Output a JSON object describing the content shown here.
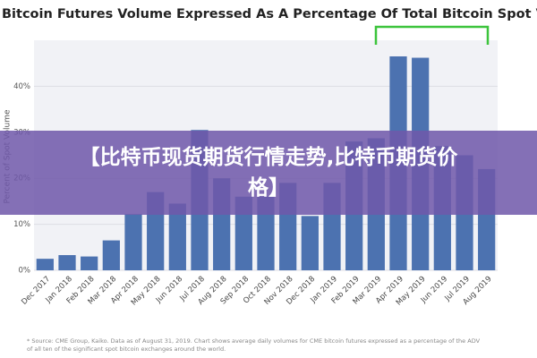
{
  "chart_data": {
    "type": "bar",
    "title": "Bitcoin Futures Volume Expressed As A Percentage Of Total Bitcoin Spot Volume",
    "y_label": "Percent of Spot Volume",
    "categories": [
      "Dec 2017",
      "Jan 2018",
      "Feb 2018",
      "Mar 2018",
      "Apr 2018",
      "May 2018",
      "Jun 2018",
      "Jul 2018",
      "Aug 2018",
      "Sep 2018",
      "Oct 2018",
      "Nov 2018",
      "Dec 2018",
      "Jan 2019",
      "Feb 2019",
      "Mar 2019",
      "Apr 2019",
      "May 2019",
      "Jun 2019",
      "Jul 2019",
      "Aug 2019"
    ],
    "values": [
      2.5,
      3.3,
      3.0,
      6.5,
      12.2,
      17,
      14.5,
      30.5,
      20,
      16,
      16,
      19,
      11.8,
      19,
      28,
      28.7,
      46.5,
      46.2,
      27,
      25,
      22
    ],
    "color": "#4c72b0",
    "ylim": [
      0,
      50
    ],
    "yticks": [
      {
        "value": 0,
        "label": "0%"
      },
      {
        "value": 10,
        "label": "10%"
      },
      {
        "value": 20,
        "label": "20%"
      },
      {
        "value": 30,
        "label": "30%"
      },
      {
        "value": 40,
        "label": "40%"
      }
    ],
    "grid": true,
    "footnote": [
      "* Source: CME Group, Kaiko. Data as of August 31, 2019. Chart shows average daily volumes for CME bitcoin futures expressed as a percentage of the ADV",
      "of all ten of the significant spot bitcoin exchanges around the world."
    ]
  },
  "banner": "【比特币现货期货行情走势,比特币期货价格】"
}
